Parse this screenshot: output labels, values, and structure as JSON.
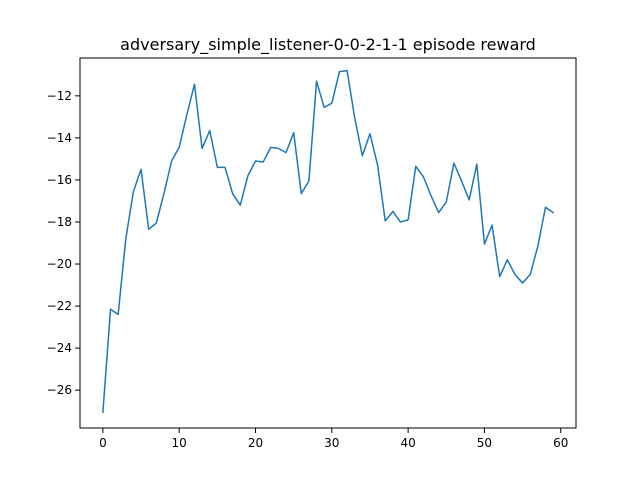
{
  "chart_data": {
    "type": "line",
    "title": "adversary_simple_listener-0-0-2-1-1 episode reward",
    "xlabel": "",
    "ylabel": "",
    "xlim": [
      -3,
      62
    ],
    "ylim": [
      -27.8,
      -10.2
    ],
    "xticks": [
      0,
      10,
      20,
      30,
      40,
      50,
      60
    ],
    "yticks": [
      -26,
      -24,
      -22,
      -20,
      -18,
      -16,
      -14,
      -12
    ],
    "grid": false,
    "legend": "none",
    "color": "#1f77b4",
    "x": [
      0,
      1,
      2,
      3,
      4,
      5,
      6,
      7,
      8,
      9,
      10,
      11,
      12,
      13,
      14,
      15,
      16,
      17,
      18,
      19,
      20,
      21,
      22,
      23,
      24,
      25,
      26,
      27,
      28,
      29,
      30,
      31,
      32,
      33,
      34,
      35,
      36,
      37,
      38,
      39,
      40,
      41,
      42,
      43,
      44,
      45,
      46,
      47,
      48,
      49,
      50,
      51,
      52,
      53,
      54,
      55,
      56,
      57,
      58,
      59
    ],
    "y": [
      -27.05,
      -22.15,
      -22.4,
      -18.8,
      -16.55,
      -15.5,
      -18.35,
      -18.05,
      -16.65,
      -15.1,
      -14.45,
      -12.9,
      -11.45,
      -14.5,
      -13.65,
      -15.4,
      -15.4,
      -16.65,
      -17.2,
      -15.8,
      -15.1,
      -15.15,
      -14.45,
      -14.5,
      -14.7,
      -13.75,
      -16.65,
      -16.05,
      -11.3,
      -12.55,
      -12.35,
      -10.85,
      -10.8,
      -13.05,
      -14.85,
      -13.8,
      -15.3,
      -17.95,
      -17.5,
      -18.0,
      -17.9,
      -15.35,
      -15.85,
      -16.75,
      -17.55,
      -17.05,
      -15.2,
      -16.05,
      -16.95,
      -15.25,
      -19.05,
      -18.15,
      -20.6,
      -19.8,
      -20.5,
      -20.9,
      -20.5,
      -19.15,
      -17.3,
      -17.55
    ]
  }
}
